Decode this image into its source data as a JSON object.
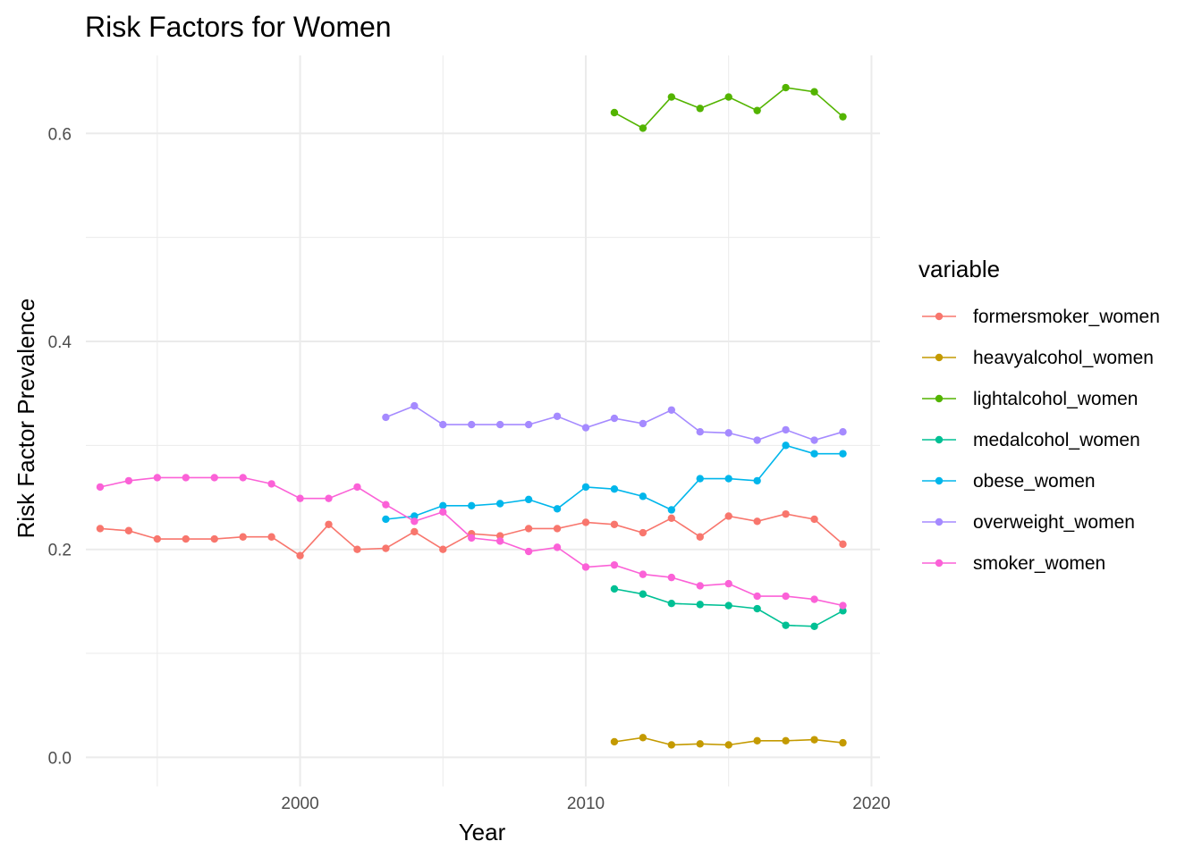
{
  "chart_data": {
    "type": "line",
    "title": "Risk Factors for Women",
    "xlabel": "Year",
    "ylabel": "Risk Factor Prevalence",
    "xlim": [
      1992.5,
      2020.3
    ],
    "ylim": [
      -0.028,
      0.675
    ],
    "x_ticks": [
      2000,
      2010,
      2020
    ],
    "x_minor": [
      1995,
      2005,
      2015
    ],
    "y_ticks": [
      0.0,
      0.2,
      0.4,
      0.6
    ],
    "y_tick_labels": [
      "0.0",
      "0.2",
      "0.4",
      "0.6"
    ],
    "y_minor": [
      0.1,
      0.3,
      0.5
    ],
    "grid": true,
    "legend": {
      "title": "variable",
      "position": "right"
    },
    "series": [
      {
        "name": "formersmoker_women",
        "color": "#F8766D",
        "x": [
          1993,
          1994,
          1995,
          1996,
          1997,
          1998,
          1999,
          2000,
          2001,
          2002,
          2003,
          2004,
          2005,
          2006,
          2007,
          2008,
          2009,
          2010,
          2011,
          2012,
          2013,
          2014,
          2015,
          2016,
          2017,
          2018,
          2019
        ],
        "y": [
          0.22,
          0.218,
          0.21,
          0.21,
          0.21,
          0.212,
          0.212,
          0.194,
          0.224,
          0.2,
          0.201,
          0.217,
          0.2,
          0.215,
          0.213,
          0.22,
          0.22,
          0.226,
          0.224,
          0.216,
          0.23,
          0.212,
          0.232,
          0.227,
          0.234,
          0.229,
          0.205
        ]
      },
      {
        "name": "heavyalcohol_women",
        "color": "#C49A00",
        "x": [
          2011,
          2012,
          2013,
          2014,
          2015,
          2016,
          2017,
          2018,
          2019
        ],
        "y": [
          0.015,
          0.019,
          0.012,
          0.013,
          0.012,
          0.016,
          0.016,
          0.017,
          0.014
        ]
      },
      {
        "name": "lightalcohol_women",
        "color": "#53B400",
        "x": [
          2011,
          2012,
          2013,
          2014,
          2015,
          2016,
          2017,
          2018,
          2019
        ],
        "y": [
          0.62,
          0.605,
          0.635,
          0.624,
          0.635,
          0.622,
          0.644,
          0.64,
          0.616
        ]
      },
      {
        "name": "medalcohol_women",
        "color": "#00C094",
        "x": [
          2011,
          2012,
          2013,
          2014,
          2015,
          2016,
          2017,
          2018,
          2019
        ],
        "y": [
          0.162,
          0.157,
          0.148,
          0.147,
          0.146,
          0.143,
          0.127,
          0.126,
          0.141
        ]
      },
      {
        "name": "obese_women",
        "color": "#00B6EB",
        "x": [
          2003,
          2004,
          2005,
          2006,
          2007,
          2008,
          2009,
          2010,
          2011,
          2012,
          2013,
          2014,
          2015,
          2016,
          2017,
          2018,
          2019
        ],
        "y": [
          0.229,
          0.232,
          0.242,
          0.242,
          0.244,
          0.248,
          0.239,
          0.26,
          0.258,
          0.251,
          0.238,
          0.268,
          0.268,
          0.266,
          0.3,
          0.292,
          0.292
        ]
      },
      {
        "name": "overweight_women",
        "color": "#A58AFF",
        "x": [
          2003,
          2004,
          2005,
          2006,
          2007,
          2008,
          2009,
          2010,
          2011,
          2012,
          2013,
          2014,
          2015,
          2016,
          2017,
          2018,
          2019
        ],
        "y": [
          0.327,
          0.338,
          0.32,
          0.32,
          0.32,
          0.32,
          0.328,
          0.317,
          0.326,
          0.321,
          0.334,
          0.313,
          0.312,
          0.305,
          0.315,
          0.305,
          0.313
        ]
      },
      {
        "name": "smoker_women",
        "color": "#FB61D7",
        "x": [
          1993,
          1994,
          1995,
          1996,
          1997,
          1998,
          1999,
          2000,
          2001,
          2002,
          2003,
          2004,
          2005,
          2006,
          2007,
          2008,
          2009,
          2010,
          2011,
          2012,
          2013,
          2014,
          2015,
          2016,
          2017,
          2018,
          2019
        ],
        "y": [
          0.26,
          0.266,
          0.269,
          0.269,
          0.269,
          0.269,
          0.263,
          0.249,
          0.249,
          0.26,
          0.243,
          0.227,
          0.236,
          0.211,
          0.208,
          0.198,
          0.202,
          0.183,
          0.185,
          0.176,
          0.173,
          0.165,
          0.167,
          0.155,
          0.155,
          0.152,
          0.146
        ]
      }
    ]
  }
}
